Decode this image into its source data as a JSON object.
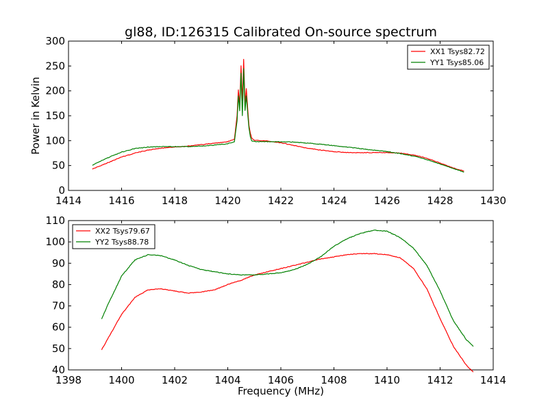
{
  "figure": {
    "title": "gl88, ID:126315 Calibrated On-source spectrum"
  },
  "chart_data": [
    {
      "type": "line",
      "title": "gl88, ID:126315 Calibrated On-source spectrum",
      "xlabel": "",
      "ylabel": "Power in Kelvin",
      "xlim": [
        1414,
        1430
      ],
      "ylim": [
        0,
        300
      ],
      "xticks": [
        "1414",
        "1416",
        "1418",
        "1420",
        "1422",
        "1424",
        "1426",
        "1428",
        "1430"
      ],
      "yticks": [
        "0",
        "50",
        "100",
        "150",
        "200",
        "250",
        "300"
      ],
      "grid": false,
      "legend_position": "top-right",
      "series": [
        {
          "name": "XX1 Tsys82.72",
          "color": "#ff0000",
          "x": [
            1414.9,
            1415.5,
            1416.0,
            1416.5,
            1417.0,
            1417.5,
            1418.0,
            1418.5,
            1419.0,
            1419.5,
            1420.0,
            1420.25,
            1420.35,
            1420.4,
            1420.45,
            1420.5,
            1420.55,
            1420.6,
            1420.65,
            1420.7,
            1420.75,
            1420.8,
            1420.85,
            1420.9,
            1421.0,
            1421.2,
            1421.5,
            1422.0,
            1422.5,
            1423.0,
            1423.5,
            1424.0,
            1424.5,
            1425.0,
            1425.5,
            1426.0,
            1426.5,
            1427.0,
            1427.5,
            1428.0,
            1428.5,
            1428.9
          ],
          "y": [
            43,
            56,
            67,
            75,
            81,
            85,
            87,
            89,
            92,
            95,
            98,
            103,
            150,
            202,
            170,
            250,
            180,
            263,
            175,
            205,
            165,
            130,
            115,
            105,
            101,
            100,
            99,
            96,
            90,
            85,
            81,
            78,
            76,
            76,
            76,
            76,
            75,
            71,
            65,
            55,
            45,
            39
          ]
        },
        {
          "name": "YY1 Tsys85.06",
          "color": "#008000",
          "x": [
            1414.9,
            1415.5,
            1416.0,
            1416.5,
            1417.0,
            1417.5,
            1418.0,
            1418.5,
            1419.0,
            1419.5,
            1420.0,
            1420.25,
            1420.35,
            1420.4,
            1420.45,
            1420.5,
            1420.55,
            1420.6,
            1420.65,
            1420.7,
            1420.75,
            1420.8,
            1420.85,
            1420.9,
            1421.0,
            1421.2,
            1421.5,
            1422.0,
            1422.5,
            1423.0,
            1423.5,
            1424.0,
            1424.5,
            1425.0,
            1425.5,
            1426.0,
            1426.5,
            1427.0,
            1427.5,
            1428.0,
            1428.5,
            1428.9
          ],
          "y": [
            51,
            66,
            77,
            84,
            87,
            88,
            88,
            88,
            89,
            91,
            94,
            98,
            140,
            190,
            160,
            235,
            150,
            245,
            160,
            190,
            155,
            125,
            108,
            99,
            98,
            98,
            98,
            98,
            97,
            95,
            93,
            90,
            87,
            84,
            81,
            78,
            74,
            69,
            62,
            53,
            44,
            37
          ]
        }
      ]
    },
    {
      "type": "line",
      "title": "",
      "xlabel": "Frequency (MHz)",
      "ylabel": "",
      "xlim": [
        1398,
        1414
      ],
      "ylim": [
        40,
        110
      ],
      "xticks": [
        "1398",
        "1400",
        "1402",
        "1404",
        "1406",
        "1408",
        "1410",
        "1412",
        "1414"
      ],
      "yticks": [
        "40",
        "50",
        "60",
        "70",
        "80",
        "90",
        "100",
        "110"
      ],
      "grid": false,
      "legend_position": "top-left",
      "series": [
        {
          "name": "XX2 Tsys79.67",
          "color": "#ff0000",
          "x": [
            1399.25,
            1399.5,
            1400.0,
            1400.5,
            1401.0,
            1401.5,
            1402.0,
            1402.5,
            1403.0,
            1403.5,
            1404.0,
            1404.5,
            1405.0,
            1405.5,
            1406.0,
            1406.5,
            1407.0,
            1407.5,
            1408.0,
            1408.5,
            1409.0,
            1409.5,
            1410.0,
            1410.5,
            1411.0,
            1411.5,
            1412.0,
            1412.5,
            1413.0,
            1413.25
          ],
          "y": [
            49.5,
            55,
            66,
            74,
            77.5,
            78,
            77,
            76,
            76.5,
            77.5,
            80,
            82,
            84.5,
            86,
            87.5,
            89,
            90.5,
            92,
            93,
            94,
            94.5,
            94.5,
            94,
            92.5,
            87.5,
            78,
            64,
            51,
            42,
            39
          ]
        },
        {
          "name": "YY2 Tsys88.78",
          "color": "#008000",
          "x": [
            1399.25,
            1399.5,
            1400.0,
            1400.5,
            1401.0,
            1401.5,
            1402.0,
            1402.5,
            1403.0,
            1403.5,
            1404.0,
            1404.5,
            1405.0,
            1405.5,
            1406.0,
            1406.5,
            1407.0,
            1407.5,
            1408.0,
            1408.5,
            1409.0,
            1409.5,
            1410.0,
            1410.5,
            1411.0,
            1411.5,
            1412.0,
            1412.5,
            1413.0,
            1413.25
          ],
          "y": [
            64,
            71,
            84,
            91.5,
            94,
            93.5,
            91.5,
            89,
            87,
            86,
            85,
            84.5,
            84.5,
            85,
            85.5,
            87,
            89.5,
            93,
            98,
            101.5,
            104,
            105.5,
            105,
            102,
            97,
            89,
            77,
            63,
            54,
            51
          ]
        }
      ]
    }
  ]
}
